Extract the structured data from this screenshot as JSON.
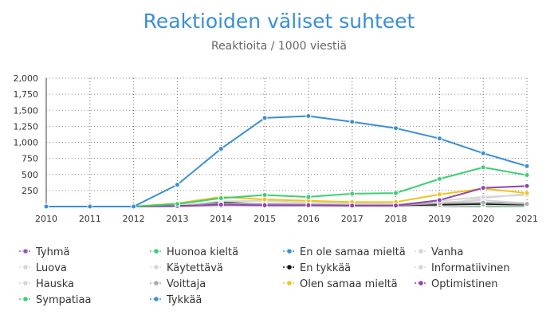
{
  "chart_data": {
    "type": "line",
    "title": "Reaktioiden väliset suhteet",
    "subtitle": "Reaktioita / 1000 viestiä",
    "xlabel": "",
    "ylabel": "",
    "x": [
      "2010",
      "2011",
      "2012",
      "2013",
      "2014",
      "2015",
      "2016",
      "2017",
      "2018",
      "2019",
      "2020",
      "2021"
    ],
    "y_ticks": [
      "250",
      "500",
      "750",
      "1,000",
      "1,250",
      "1,500",
      "1,750",
      "2,000"
    ],
    "ylim": [
      0,
      2000
    ],
    "grid": "vertical dotted and horizontal dotted",
    "legend_position": "bottom",
    "series": [
      {
        "name": "Tyhmä",
        "color": "#9b59b6",
        "values": [
          0,
          0,
          0,
          5,
          10,
          8,
          6,
          5,
          5,
          15,
          40,
          30
        ]
      },
      {
        "name": "Huonoa kieltä",
        "color": "#3ccf73",
        "values": [
          0,
          0,
          0,
          5,
          20,
          15,
          10,
          8,
          8,
          10,
          12,
          10
        ]
      },
      {
        "name": "En ole samaa mieltä",
        "color": "#3a8ed6",
        "values": [
          0,
          0,
          0,
          10,
          30,
          40,
          35,
          30,
          30,
          40,
          60,
          50
        ]
      },
      {
        "name": "Vanha",
        "color": "#d6d6d6",
        "values": [
          0,
          0,
          0,
          2,
          5,
          5,
          4,
          4,
          3,
          10,
          20,
          15
        ]
      },
      {
        "name": "Luova",
        "color": "#d6d6d6",
        "values": [
          0,
          0,
          0,
          3,
          8,
          10,
          10,
          8,
          8,
          20,
          40,
          30
        ]
      },
      {
        "name": "Käytettävä",
        "color": "#d6d6d6",
        "values": [
          0,
          0,
          0,
          2,
          4,
          5,
          5,
          5,
          5,
          30,
          130,
          200
        ]
      },
      {
        "name": "En tykkää",
        "color": "#111111",
        "values": [
          0,
          0,
          0,
          20,
          60,
          40,
          30,
          20,
          20,
          30,
          40,
          30
        ]
      },
      {
        "name": "Informatiivinen",
        "color": "#d6d6d6",
        "values": [
          0,
          0,
          0,
          20,
          80,
          90,
          60,
          50,
          40,
          60,
          100,
          50
        ]
      },
      {
        "name": "Hauska",
        "color": "#d6d6d6",
        "values": [
          0,
          0,
          0,
          10,
          40,
          50,
          40,
          30,
          30,
          90,
          150,
          180
        ]
      },
      {
        "name": "Voittaja",
        "color": "#aaaaaa",
        "values": [
          0,
          0,
          0,
          5,
          30,
          40,
          30,
          20,
          20,
          50,
          60,
          40
        ]
      },
      {
        "name": "Olen samaa mieltä",
        "color": "#f0c419",
        "values": [
          0,
          0,
          0,
          50,
          150,
          110,
          90,
          70,
          70,
          190,
          280,
          210
        ]
      },
      {
        "name": "Optimistinen",
        "color": "#8e44ad",
        "values": [
          0,
          0,
          0,
          10,
          30,
          20,
          20,
          15,
          15,
          100,
          290,
          320
        ]
      },
      {
        "name": "Sympatiaa",
        "color": "#3ccf73",
        "values": [
          0,
          0,
          0,
          40,
          130,
          180,
          150,
          200,
          210,
          430,
          610,
          490
        ]
      },
      {
        "name": "Tykkää",
        "color": "#3a8ed6",
        "values": [
          0,
          0,
          0,
          340,
          900,
          1380,
          1410,
          1320,
          1220,
          1060,
          830,
          630
        ]
      }
    ]
  }
}
